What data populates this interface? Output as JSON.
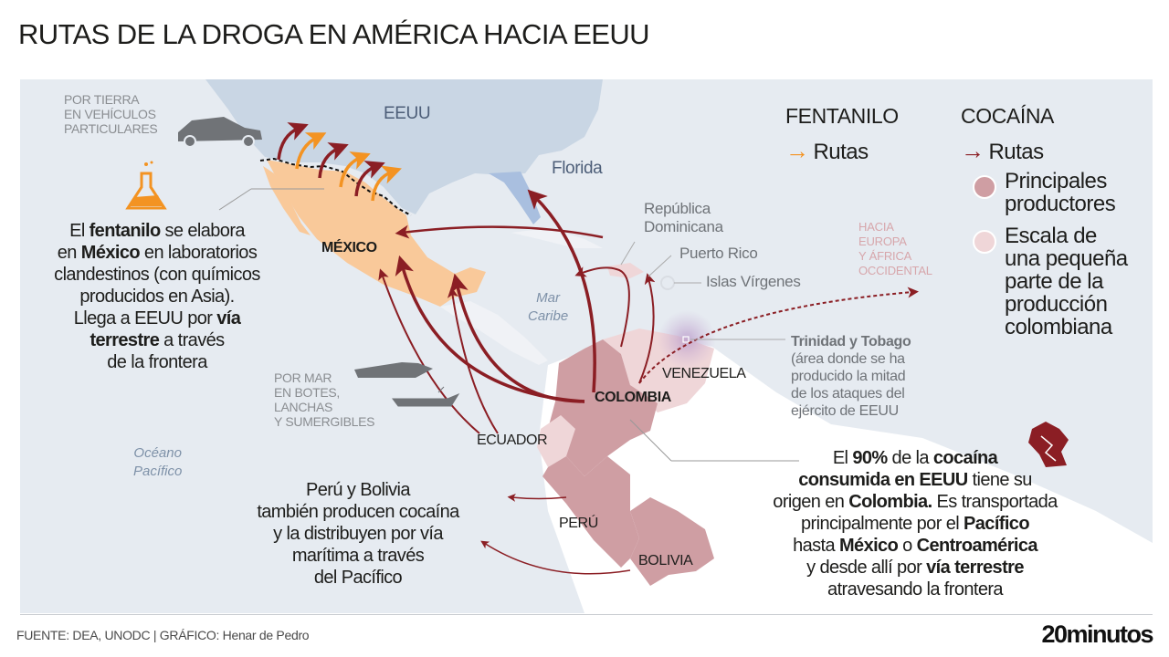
{
  "title": "RUTAS DE LA DROGA EN AMÉRICA HACIA EEUU",
  "colors": {
    "fentanyl": "#f39322",
    "cocaine": "#8b1e24",
    "main_producers": "#cf9ea3",
    "minor_stopover": "#efd6d8",
    "mexico": "#f9c99a",
    "usa": "#c9d6e4",
    "florida": "#a9bfdf",
    "sea": "#e6ebf1"
  },
  "map": {
    "countries": {
      "usa": "EEUU",
      "florida": "Florida",
      "mexico": "MÉXICO",
      "colombia": "COLOMBIA",
      "venezuela": "VENEZUELA",
      "ecuador": "ECUADOR",
      "peru": "PERÚ",
      "bolivia": "BOLIVIA"
    },
    "seas": {
      "caribbean": [
        "Mar",
        "Caribe"
      ],
      "pacific": [
        "Océano",
        "Pacífico"
      ]
    },
    "islands": {
      "dominican": [
        "República",
        "Dominicana"
      ],
      "puerto_rico": "Puerto Rico",
      "virgin": "Islas Vírgenes"
    },
    "europe_africa": [
      "HACIA",
      "EUROPA",
      "Y ÁFRICA",
      "OCCIDENTAL"
    ],
    "by_land": [
      "POR TIERRA",
      "EN VEHÍCULOS",
      "PARTICULARES"
    ],
    "by_sea": [
      "POR MAR",
      "EN BOTES,",
      "LANCHAS",
      "Y SUMERGIBLES"
    ],
    "trinidad": {
      "name": "Trinidad y Tobago",
      "note": [
        "(área donde se ha",
        "producido la mitad",
        "de los ataques del",
        "ejército de EEUU"
      ]
    },
    "icons": [
      "car-icon",
      "speedboat-icon",
      "boat-icon",
      "flask-icon",
      "cocaine-icon"
    ]
  },
  "fentanyl_text": [
    [
      {
        "t": "El "
      },
      {
        "t": "fentanilo",
        "b": true
      },
      {
        "t": " se elabora"
      }
    ],
    [
      {
        "t": "en "
      },
      {
        "t": "México",
        "b": true
      },
      {
        "t": " en laboratorios"
      }
    ],
    [
      {
        "t": "clandestinos (con químicos"
      }
    ],
    [
      {
        "t": "producidos en Asia)."
      }
    ],
    [
      {
        "t": "Llega a EEUU por "
      },
      {
        "t": "vía",
        "b": true
      }
    ],
    [
      {
        "t": "terrestre",
        "b": true
      },
      {
        "t": " a través"
      }
    ],
    [
      {
        "t": "de la frontera"
      }
    ]
  ],
  "peru_text": [
    [
      {
        "t": "Perú y Bolivia"
      }
    ],
    [
      {
        "t": "también producen cocaína"
      }
    ],
    [
      {
        "t": "y la distribuyen por vía"
      }
    ],
    [
      {
        "t": "marítima a través"
      }
    ],
    [
      {
        "t": "del Pacífico"
      }
    ]
  ],
  "cocaine_text": [
    [
      {
        "t": "El "
      },
      {
        "t": "90%",
        "b": true
      },
      {
        "t": " de la "
      },
      {
        "t": "cocaína",
        "b": true
      }
    ],
    [
      {
        "t": "consumida en EEUU",
        "b": true
      },
      {
        "t": " tiene su"
      }
    ],
    [
      {
        "t": "origen en "
      },
      {
        "t": "Colombia.",
        "b": true
      },
      {
        "t": " Es transportada"
      }
    ],
    [
      {
        "t": "principalmente por el "
      },
      {
        "t": "Pacífico",
        "b": true
      }
    ],
    [
      {
        "t": "hasta "
      },
      {
        "t": "México",
        "b": true
      },
      {
        "t": " o "
      },
      {
        "t": "Centroamérica",
        "b": true
      }
    ],
    [
      {
        "t": "y desde allí por "
      },
      {
        "t": "vía terrestre",
        "b": true
      }
    ],
    [
      {
        "t": "atravesando la frontera"
      }
    ]
  ],
  "legend": {
    "fentanyl_heading": "FENTANILO",
    "fentanyl_routes": "Rutas",
    "cocaine_heading": "COCAÍNA",
    "cocaine_routes": "Rutas",
    "main_producers": [
      "Principales",
      "productores"
    ],
    "stopover": [
      "Escala de",
      "una pequeña",
      "parte de la",
      "producción",
      "colombiana"
    ]
  },
  "footer": {
    "source": "FUENTE: DEA, UNODC |  GRÁFICO: Henar de Pedro",
    "brand": "20minutos"
  }
}
